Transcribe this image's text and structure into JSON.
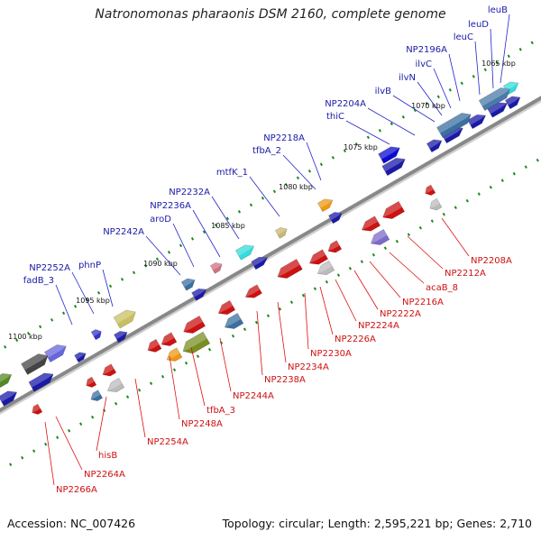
{
  "title": "Natronomonas pharaonis DSM 2160, complete genome",
  "footer": {
    "accession": "Accession: NC_007426",
    "topology": "Topology: circular",
    "length": "Length: 2,595,221 bp",
    "genes": "Genes: 2,710"
  },
  "colors": {
    "forward": "#1a1aa8",
    "reverse": "#cc1111",
    "tick": "#1a8a1a",
    "backbone": "#888888"
  },
  "scale_labels": [
    "1065 kbp",
    "1070 kbp",
    "1075 kbp",
    "1080 kbp",
    "1085 kbp",
    "1090 kbp",
    "1095 kbp",
    "1100 kbp"
  ],
  "forward_labels": [
    "leuB",
    "leuD",
    "leuC",
    "NP2196A",
    "ilvC",
    "ilvN",
    "ilvB",
    "NP2204A",
    "thiC",
    "NP2218A",
    "tfbA_2",
    "mtfK_1",
    "NP2232A",
    "NP2236A",
    "aroD",
    "NP2242A",
    "phnP",
    "NP2252A",
    "fadB_3"
  ],
  "reverse_labels": [
    "NP2208A",
    "NP2212A",
    "acaB_8",
    "NP2216A",
    "NP2222A",
    "NP2224A",
    "NP2226A",
    "NP2230A",
    "NP2234A",
    "NP2238A",
    "NP2244A",
    "tfbA_3",
    "NP2248A",
    "NP2254A",
    "hisB",
    "NP2264A",
    "NP2266A"
  ]
}
